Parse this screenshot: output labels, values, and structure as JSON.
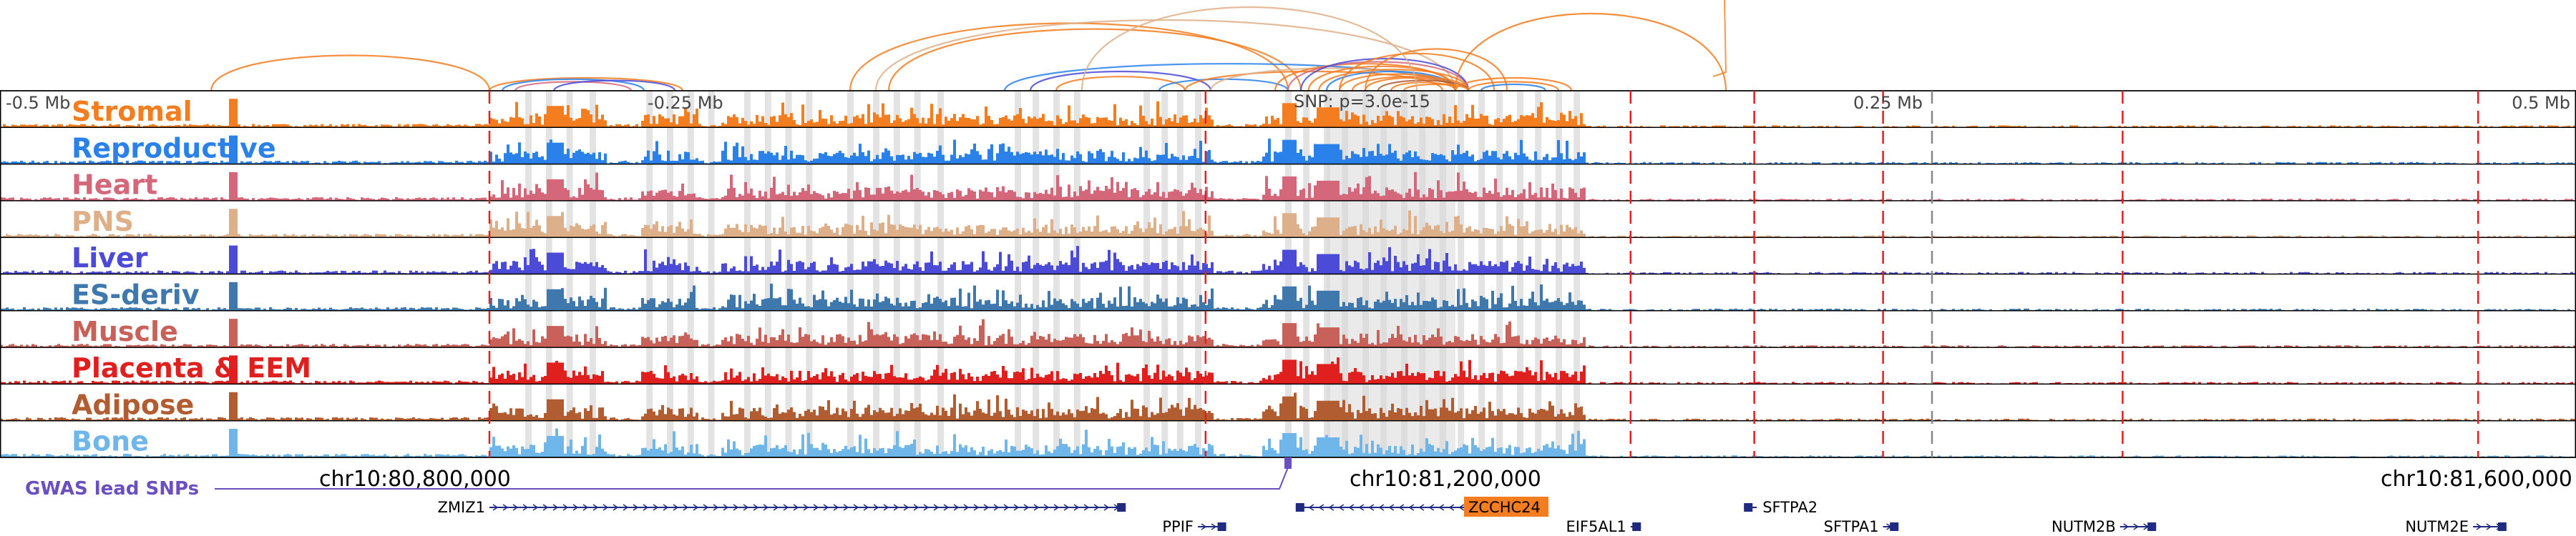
{
  "chart_data": {
    "type": "genome-browser",
    "region": {
      "chrom": "chr10",
      "start": 80650000,
      "end": 81650000,
      "view_start": 80700000,
      "view_end": 81700000
    },
    "axis_top": {
      "left": "-0.5 Mb",
      "mid_left": "-0.25 Mb",
      "snp": "SNP: p=3.0e-15",
      "mid_right": "0.25 Mb",
      "right": "0.5 Mb"
    },
    "axis_bottom": {
      "left": "chr10:80,800,000",
      "mid": "chr10:81,200,000",
      "right": "chr10:81,600,000"
    },
    "tracks": [
      {
        "name": "Stromal",
        "color": "#f47d20"
      },
      {
        "name": "Reproductive",
        "color": "#2b81ea"
      },
      {
        "name": "Heart",
        "color": "#d5677b"
      },
      {
        "name": "PNS",
        "color": "#ddb08a"
      },
      {
        "name": "Liver",
        "color": "#4b4bd8"
      },
      {
        "name": "ES-deriv",
        "color": "#3f78ad"
      },
      {
        "name": "Muscle",
        "color": "#c8615a"
      },
      {
        "name": "Placenta & EEM",
        "color": "#e0201f"
      },
      {
        "name": "Adipose",
        "color": "#b25c31"
      },
      {
        "name": "Bone",
        "color": "#6fb6ea"
      }
    ],
    "gwas_label": "GWAS lead SNPs",
    "snp_position_frac": 0.5,
    "peak_regions": [
      [
        0.19,
        0.235
      ],
      [
        0.248,
        0.27
      ],
      [
        0.28,
        0.345
      ],
      [
        0.34,
        0.425
      ],
      [
        0.425,
        0.47
      ],
      [
        0.49,
        0.565
      ],
      [
        0.565,
        0.615
      ]
    ],
    "ld_boundaries_red": [
      0.19,
      0.468,
      0.633,
      0.681,
      0.731,
      0.824,
      0.962
    ],
    "ld_boundaries_gray": [
      0.75
    ],
    "highlight_bins": [
      0.205,
      0.213,
      0.221,
      0.23,
      0.252,
      0.26,
      0.268,
      0.276,
      0.29,
      0.298,
      0.306,
      0.314,
      0.33,
      0.34,
      0.348,
      0.356,
      0.365,
      0.395,
      0.402,
      0.41,
      0.418,
      0.445,
      0.452,
      0.458,
      0.465,
      0.5,
      0.507,
      0.515,
      0.522,
      0.53,
      0.537,
      0.545,
      0.552,
      0.56,
      0.567,
      0.575,
      0.582,
      0.59,
      0.597,
      0.605,
      0.612
    ],
    "arcs": [
      {
        "a": 0.082,
        "b": 0.19,
        "h": 0.55,
        "color": "#f47d20"
      },
      {
        "a": 0.19,
        "b": 0.265,
        "h": 0.2,
        "color": "#f47d20"
      },
      {
        "a": 0.195,
        "b": 0.25,
        "h": 0.18,
        "color": "#2b81ea"
      },
      {
        "a": 0.2,
        "b": 0.245,
        "h": 0.14,
        "color": "#d5677b"
      },
      {
        "a": 0.215,
        "b": 0.262,
        "h": 0.16,
        "color": "#4b4bd8"
      },
      {
        "a": 0.33,
        "b": 0.5,
        "h": 1.05,
        "color": "#f47d20"
      },
      {
        "a": 0.34,
        "b": 0.565,
        "h": 1.1,
        "color": "#ddb08a"
      },
      {
        "a": 0.345,
        "b": 0.505,
        "h": 0.96,
        "color": "#f47d20"
      },
      {
        "a": 0.39,
        "b": 0.565,
        "h": 0.42,
        "color": "#2b81ea"
      },
      {
        "a": 0.4,
        "b": 0.47,
        "h": 0.3,
        "color": "#4b4bd8"
      },
      {
        "a": 0.41,
        "b": 0.46,
        "h": 0.22,
        "color": "#f47d20"
      },
      {
        "a": 0.45,
        "b": 0.5,
        "h": 0.18,
        "color": "#2b81ea"
      },
      {
        "a": 0.46,
        "b": 0.56,
        "h": 0.3,
        "color": "#f47d20"
      },
      {
        "a": 0.47,
        "b": 0.565,
        "h": 0.35,
        "color": "#ddb08a"
      },
      {
        "a": 0.495,
        "b": 0.565,
        "h": 0.42,
        "color": "#f47d20"
      },
      {
        "a": 0.5,
        "b": 0.57,
        "h": 0.45,
        "color": "#d5677b"
      },
      {
        "a": 0.505,
        "b": 0.57,
        "h": 0.5,
        "color": "#4b4bd8"
      },
      {
        "a": 0.508,
        "b": 0.565,
        "h": 0.38,
        "color": "#f47d20"
      },
      {
        "a": 0.512,
        "b": 0.57,
        "h": 0.33,
        "color": "#f47d20"
      },
      {
        "a": 0.515,
        "b": 0.565,
        "h": 0.3,
        "color": "#2b81ea"
      },
      {
        "a": 0.52,
        "b": 0.565,
        "h": 0.26,
        "color": "#f47d20"
      },
      {
        "a": 0.525,
        "b": 0.57,
        "h": 0.22,
        "color": "#f47d20"
      },
      {
        "a": 0.53,
        "b": 0.565,
        "h": 0.2,
        "color": "#f47d20"
      },
      {
        "a": 0.535,
        "b": 0.57,
        "h": 0.16,
        "color": "#b25c31"
      },
      {
        "a": 0.54,
        "b": 0.565,
        "h": 0.13,
        "color": "#f47d20"
      },
      {
        "a": 0.545,
        "b": 0.57,
        "h": 0.1,
        "color": "#f47d20"
      },
      {
        "a": 0.52,
        "b": 0.58,
        "h": 0.58,
        "color": "#f47d20"
      },
      {
        "a": 0.53,
        "b": 0.585,
        "h": 0.65,
        "color": "#f47d20"
      },
      {
        "a": 0.565,
        "b": 0.61,
        "h": 0.2,
        "color": "#f47d20"
      },
      {
        "a": 0.57,
        "b": 0.605,
        "h": 0.14,
        "color": "#f47d20"
      },
      {
        "a": 0.575,
        "b": 0.6,
        "h": 0.1,
        "color": "#2b81ea"
      },
      {
        "a": 0.565,
        "b": 0.67,
        "h": 1.2,
        "color": "#f47d20"
      },
      {
        "a": 0.42,
        "b": 0.55,
        "h": 1.3,
        "color": "#ddb08a"
      }
    ],
    "genes": [
      {
        "name": "ZMIZ1",
        "start": 0.19,
        "end": 0.437,
        "strand": "+",
        "row": 0,
        "label_side": "left"
      },
      {
        "name": "PPIF",
        "start": 0.465,
        "end": 0.476,
        "strand": "+",
        "row": 1,
        "label_side": "left"
      },
      {
        "name": "ZCCHC24",
        "start": 0.503,
        "end": 0.57,
        "strand": "-",
        "row": 0,
        "label_side": "right",
        "highlight": true
      },
      {
        "name": "EIF5AL1",
        "start": 0.633,
        "end": 0.637,
        "strand": "+",
        "row": 1,
        "label_side": "left"
      },
      {
        "name": "SFTPA2",
        "start": 0.677,
        "end": 0.682,
        "strand": "-",
        "row": 0,
        "label_side": "right"
      },
      {
        "name": "SFTPA1",
        "start": 0.731,
        "end": 0.737,
        "strand": "+",
        "row": 1,
        "label_side": "left"
      },
      {
        "name": "NUTM2B",
        "start": 0.823,
        "end": 0.837,
        "strand": "+",
        "row": 1,
        "label_side": "left"
      },
      {
        "name": "NUTM2E",
        "start": 0.96,
        "end": 0.973,
        "strand": "+",
        "row": 1,
        "label_side": "left"
      }
    ]
  }
}
